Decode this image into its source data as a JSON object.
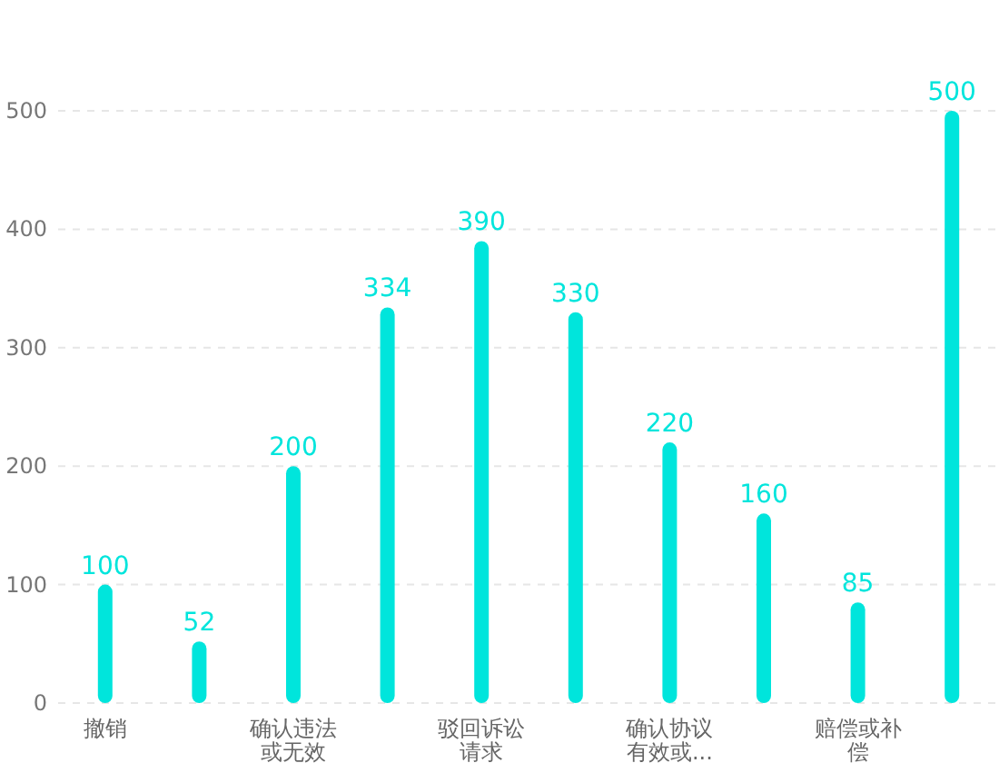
{
  "chart_data": {
    "type": "bar",
    "categories": [
      "撤销",
      null,
      "确认违法或无效",
      null,
      "驳回诉讼请求",
      null,
      "确认协议有效或...",
      null,
      "赔偿或补偿",
      null
    ],
    "values": [
      100,
      52,
      200,
      334,
      390,
      330,
      220,
      160,
      85,
      500
    ],
    "color": "#00e5dc",
    "ylim": [
      0,
      500
    ],
    "yticks": [
      0,
      100,
      200,
      300,
      400,
      500
    ],
    "grid": "y",
    "data_labels": true
  }
}
